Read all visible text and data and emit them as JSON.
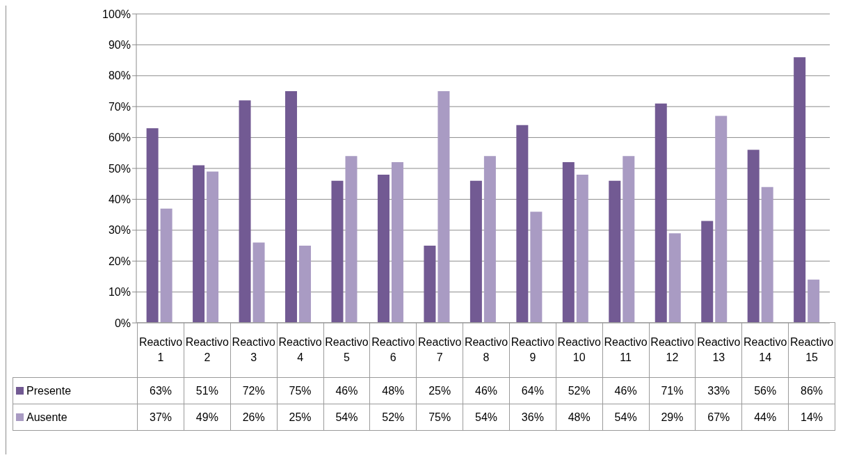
{
  "chart_data": {
    "type": "bar",
    "categories": [
      "Reactivo 1",
      "Reactivo 2",
      "Reactivo 3",
      "Reactivo 4",
      "Reactivo 5",
      "Reactivo 6",
      "Reactivo 7",
      "Reactivo 8",
      "Reactivo 9",
      "Reactivo 10",
      "Reactivo 11",
      "Reactivo 12",
      "Reactivo 13",
      "Reactivo 14",
      "Reactivo 15"
    ],
    "series": [
      {
        "name": "Presente",
        "color": "#725a93",
        "values": [
          63,
          51,
          72,
          75,
          46,
          48,
          25,
          46,
          64,
          52,
          46,
          71,
          33,
          56,
          86
        ],
        "value_labels": [
          "63%",
          "51%",
          "72%",
          "75%",
          "46%",
          "48%",
          "25%",
          "46%",
          "64%",
          "52%",
          "46%",
          "71%",
          "33%",
          "56%",
          "86%"
        ]
      },
      {
        "name": "Ausente",
        "color": "#a99bc3",
        "values": [
          37,
          49,
          26,
          25,
          54,
          52,
          75,
          54,
          36,
          48,
          54,
          29,
          67,
          44,
          14
        ],
        "value_labels": [
          "37%",
          "49%",
          "26%",
          "25%",
          "54%",
          "52%",
          "75%",
          "54%",
          "36%",
          "48%",
          "54%",
          "29%",
          "67%",
          "44%",
          "14%"
        ]
      }
    ],
    "ylim": [
      0,
      100
    ],
    "yticks": [
      {
        "value": 0,
        "label": "0%"
      },
      {
        "value": 10,
        "label": "10%"
      },
      {
        "value": 20,
        "label": "20%"
      },
      {
        "value": 30,
        "label": "30%"
      },
      {
        "value": 40,
        "label": "40%"
      },
      {
        "value": 50,
        "label": "50%"
      },
      {
        "value": 60,
        "label": "60%"
      },
      {
        "value": 70,
        "label": "70%"
      },
      {
        "value": 80,
        "label": "80%"
      },
      {
        "value": 90,
        "label": "90%"
      },
      {
        "value": 100,
        "label": "100%"
      }
    ],
    "grid": "y",
    "legend": "bottom"
  }
}
